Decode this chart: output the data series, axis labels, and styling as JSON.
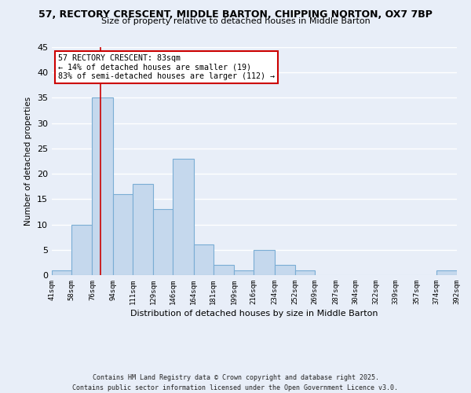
{
  "title": "57, RECTORY CRESCENT, MIDDLE BARTON, CHIPPING NORTON, OX7 7BP",
  "subtitle": "Size of property relative to detached houses in Middle Barton",
  "xlabel": "Distribution of detached houses by size in Middle Barton",
  "ylabel": "Number of detached properties",
  "bar_color": "#c5d8ed",
  "bar_edge_color": "#7aadd4",
  "bg_color": "#e8eef8",
  "grid_color": "white",
  "bins": [
    41,
    58,
    76,
    94,
    111,
    129,
    146,
    164,
    181,
    199,
    216,
    234,
    252,
    269,
    287,
    304,
    322,
    339,
    357,
    374,
    392
  ],
  "bin_labels": [
    "41sqm",
    "58sqm",
    "76sqm",
    "94sqm",
    "111sqm",
    "129sqm",
    "146sqm",
    "164sqm",
    "181sqm",
    "199sqm",
    "216sqm",
    "234sqm",
    "252sqm",
    "269sqm",
    "287sqm",
    "304sqm",
    "322sqm",
    "339sqm",
    "357sqm",
    "374sqm",
    "392sqm"
  ],
  "counts": [
    1,
    10,
    35,
    16,
    18,
    13,
    23,
    6,
    2,
    1,
    5,
    2,
    1,
    0,
    0,
    0,
    0,
    0,
    0,
    1
  ],
  "ylim": [
    0,
    45
  ],
  "yticks": [
    0,
    5,
    10,
    15,
    20,
    25,
    30,
    35,
    40,
    45
  ],
  "property_line_x": 83,
  "property_line_color": "#cc0000",
  "annotation_title": "57 RECTORY CRESCENT: 83sqm",
  "annotation_line1": "← 14% of detached houses are smaller (19)",
  "annotation_line2": "83% of semi-detached houses are larger (112) →",
  "annotation_box_color": "white",
  "annotation_edge_color": "#cc0000",
  "footer_line1": "Contains HM Land Registry data © Crown copyright and database right 2025.",
  "footer_line2": "Contains public sector information licensed under the Open Government Licence v3.0."
}
